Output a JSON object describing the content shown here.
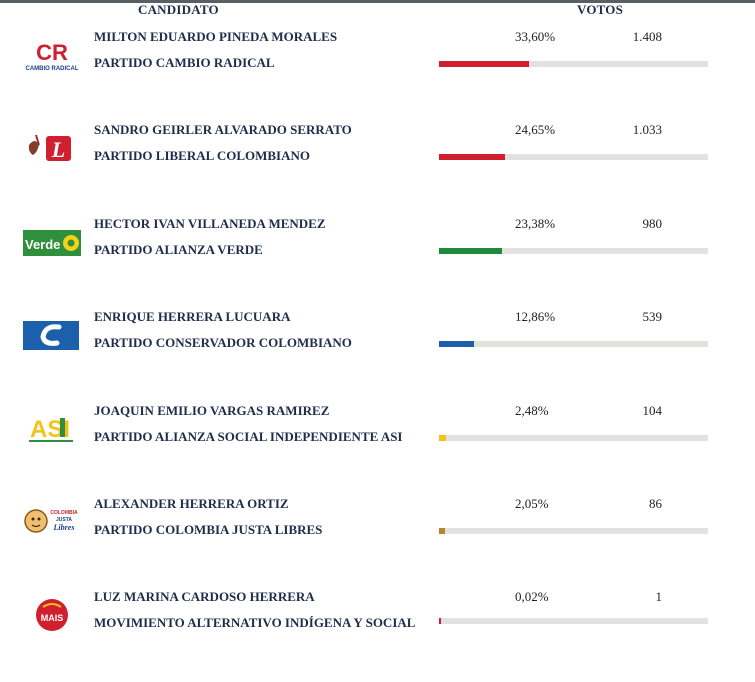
{
  "header": {
    "candidate": "CANDIDATO",
    "votes": "VOTOS"
  },
  "rows": [
    {
      "name": "MILTON EDUARDO PINEDA MORALES",
      "party": "PARTIDO CAMBIO RADICAL",
      "pct": "33,60%",
      "votes": "1.408",
      "share": 33.6,
      "color": "#d0202f",
      "logo": "cambio-radical-logo",
      "logo_text": "CAMBIO RADICAL"
    },
    {
      "name": "SANDRO GEIRLER ALVARADO SERRATO",
      "party": "PARTIDO LIBERAL COLOMBIANO",
      "pct": "24,65%",
      "votes": "1.033",
      "share": 24.65,
      "color": "#d0202f",
      "logo": "partido-liberal-logo",
      "logo_text": "L"
    },
    {
      "name": "HECTOR IVAN VILLANEDA MENDEZ",
      "party": "PARTIDO ALIANZA VERDE",
      "pct": "23,38%",
      "votes": "980",
      "share": 23.38,
      "color": "#1f8a3c",
      "logo": "alianza-verde-logo",
      "logo_text": "Verde"
    },
    {
      "name": "ENRIQUE HERRERA LUCUARA",
      "party": "PARTIDO CONSERVADOR COLOMBIANO",
      "pct": "12,86%",
      "votes": "539",
      "share": 12.86,
      "color": "#1c5faa",
      "logo": "partido-conservador-logo",
      "logo_text": ""
    },
    {
      "name": "JOAQUIN EMILIO VARGAS RAMIREZ",
      "party": "PARTIDO ALIANZA SOCIAL INDEPENDIENTE ASI",
      "pct": "2,48%",
      "votes": "104",
      "share": 2.48,
      "color": "#f2c318",
      "logo": "asi-logo",
      "logo_text": "ASI"
    },
    {
      "name": "ALEXANDER HERRERA ORTIZ",
      "party": "PARTIDO COLOMBIA JUSTA LIBRES",
      "pct": "2,05%",
      "votes": "86",
      "share": 2.05,
      "color": "#b8862a",
      "logo": "colombia-justa-libres-logo",
      "logo_text": "COLOMBIA JUSTA Libres"
    },
    {
      "name": "LUZ MARINA CARDOSO HERRERA",
      "party": "MOVIMIENTO ALTERNATIVO INDÍGENA Y SOCIAL",
      "pct": "0,02%",
      "votes": "1",
      "share": 0.02,
      "color": "#d0202f",
      "logo": "mais-logo",
      "logo_text": "MAIS"
    }
  ]
}
